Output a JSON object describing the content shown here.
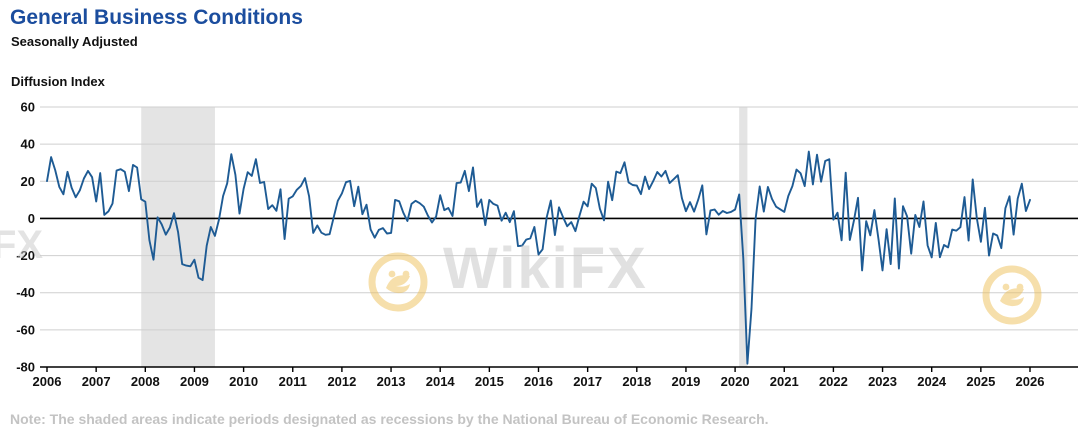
{
  "header": {
    "title": "General Business Conditions",
    "subtitle": "Seasonally Adjusted",
    "axis_title": "Diffusion Index"
  },
  "note": "Note: The shaded areas indicate periods designated as recessions by the National Bureau of Economic Research.",
  "watermark": {
    "center_text": "WikiFX",
    "left_text": "FX"
  },
  "colors": {
    "title": "#1b4d9e",
    "line": "#1e5b94",
    "grid": "#cfcfcf",
    "zero_line": "#000000",
    "axis": "#000000",
    "recession_band": "#e4e4e4",
    "note_text": "#c3c3c3",
    "watermark_text": "#c9c9c9",
    "watermark_gold": "#eec05a"
  },
  "chart_data": {
    "type": "line",
    "title": "General Business Conditions",
    "subtitle": "Seasonally Adjusted",
    "ylabel": "Diffusion Index",
    "ylim": [
      -80,
      60
    ],
    "y_ticks": [
      60,
      40,
      20,
      0,
      -20,
      -40,
      -60,
      -80
    ],
    "x_ticks": [
      2006,
      2007,
      2008,
      2009,
      2010,
      2011,
      2012,
      2013,
      2014,
      2015,
      2016,
      2017,
      2018,
      2019,
      2020,
      2021,
      2022,
      2023,
      2024,
      2025,
      2026
    ],
    "grid": true,
    "legend": "none",
    "recessions": [
      {
        "start_x": 2007.917,
        "end_x": 2009.417
      },
      {
        "start_x": 2020.083,
        "end_x": 2020.25
      }
    ],
    "x_start_year": 2006,
    "x_step_months": 1,
    "series": [
      {
        "name": "General Business Conditions (Diffusion Index)",
        "monthly_values": [
          20.1,
          33.0,
          26.0,
          17.0,
          13.0,
          25.1,
          16.6,
          11.4,
          15.1,
          21.5,
          25.6,
          22.2,
          9.1,
          24.4,
          1.9,
          3.8,
          8.0,
          25.8,
          26.5,
          25.1,
          14.7,
          28.8,
          27.4,
          10.3,
          9.0,
          -11.7,
          -22.2,
          0.6,
          -3.2,
          -8.7,
          -4.9,
          2.8,
          -7.4,
          -24.6,
          -25.4,
          -25.8,
          -22.2,
          -31.9,
          -33.2,
          -14.7,
          -4.6,
          -9.4,
          -0.6,
          12.1,
          18.9,
          34.6,
          23.5,
          2.6,
          15.9,
          24.9,
          22.9,
          31.9,
          19.1,
          19.6,
          5.1,
          7.1,
          4.1,
          15.7,
          -11.1,
          10.6,
          11.9,
          15.4,
          17.5,
          21.7,
          11.9,
          -7.8,
          -3.8,
          -7.7,
          -8.8,
          -8.5,
          0.6,
          9.5,
          13.5,
          19.5,
          20.2,
          6.6,
          17.1,
          2.3,
          7.4,
          -5.9,
          -10.4,
          -6.2,
          -5.2,
          -8.1,
          -7.8,
          10.0,
          9.2,
          3.1,
          -1.4,
          7.8,
          9.5,
          8.2,
          6.3,
          1.5,
          -2.2,
          1.0,
          12.5,
          4.5,
          5.6,
          1.3,
          19.0,
          19.3,
          25.6,
          14.7,
          27.5,
          6.2,
          10.2,
          -3.6,
          10.0,
          7.8,
          6.9,
          -1.2,
          3.1,
          -2.0,
          3.9,
          -14.9,
          -14.7,
          -11.4,
          -10.7,
          -4.6,
          -19.4,
          -16.6,
          0.6,
          9.6,
          -9.0,
          6.0,
          0.6,
          -4.2,
          -2.0,
          -6.8,
          1.5,
          9.0,
          6.5,
          18.7,
          16.4,
          5.2,
          -1.0,
          19.8,
          9.8,
          25.2,
          24.4,
          30.2,
          19.4,
          18.0,
          17.7,
          13.1,
          22.5,
          15.8,
          20.1,
          25.0,
          22.6,
          25.6,
          19.0,
          21.1,
          23.3,
          10.9,
          3.9,
          8.8,
          3.7,
          10.1,
          17.8,
          -8.6,
          4.3,
          4.8,
          2.0,
          4.0,
          2.9,
          3.5,
          4.8,
          12.9,
          -21.5,
          -78.2,
          -48.5,
          -0.2,
          17.2,
          3.7,
          17.0,
          10.5,
          6.3,
          4.9,
          3.5,
          12.1,
          17.4,
          26.3,
          24.3,
          17.4,
          36.0,
          18.3,
          34.3,
          19.8,
          30.9,
          31.9,
          -0.7,
          3.1,
          -11.8,
          24.6,
          -11.6,
          -1.2,
          11.1,
          -28.0,
          -1.5,
          -9.1,
          4.5,
          -11.2,
          -28.0,
          -5.8,
          -24.6,
          10.8,
          -27.0,
          6.6,
          1.1,
          -19.0,
          1.9,
          -4.6,
          9.1,
          -14.5,
          -21.0,
          -2.4,
          -20.9,
          -14.3,
          -15.6,
          -6.0,
          -6.6,
          -4.7,
          11.5,
          -11.9,
          21.0,
          0.2,
          -12.6,
          5.7,
          -20.0,
          -8.1,
          -9.2,
          -16.0,
          5.5,
          11.9,
          -8.7,
          10.7,
          18.7,
          4.0,
          10.0
        ]
      }
    ]
  }
}
